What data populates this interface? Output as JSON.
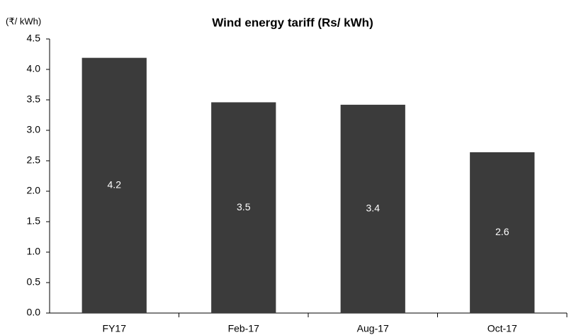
{
  "chart_data": {
    "type": "bar",
    "title": "Wind energy tariff (Rs/ kWh)",
    "y_label": "(₹/ kWh)",
    "categories": [
      "FY17",
      "Feb-17",
      "Aug-17",
      "Oct-17"
    ],
    "values": [
      4.19,
      3.46,
      3.42,
      2.64
    ],
    "value_labels": [
      "4.2",
      "3.5",
      "3.4",
      "2.6"
    ],
    "color": "#3b3b3b",
    "ylim": [
      0,
      4.5
    ],
    "yticks": [
      {
        "value": 0,
        "label": "0.0"
      },
      0.5,
      {
        "value": 1,
        "label": "1.0"
      },
      1.5,
      {
        "value": 2,
        "label": "2.0"
      },
      2.5,
      {
        "value": 3,
        "label": "3.0"
      },
      3.5,
      {
        "value": 4,
        "label": "4.0"
      },
      4.5
    ],
    "grid": false
  }
}
